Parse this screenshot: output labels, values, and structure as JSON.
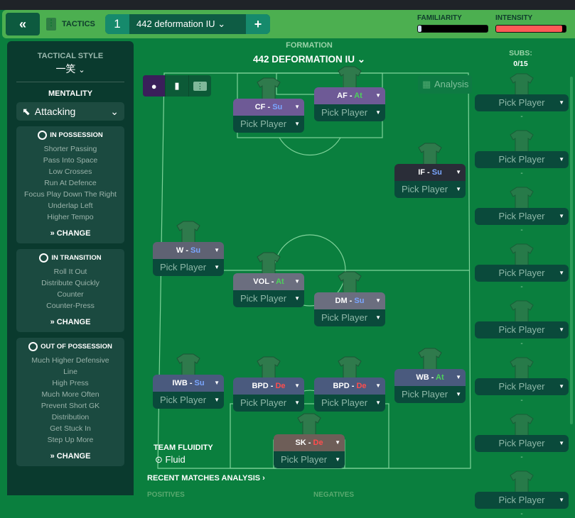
{
  "header": {
    "tactics_label": "TACTICS",
    "slot_number": "1",
    "tactic_name": "442 deformation IU",
    "familiarity_label": "FAMILIARITY",
    "intensity_label": "INTENSITY",
    "familiarity_level": 0.05,
    "intensity_level": 0.95,
    "colors": {
      "header": "#4caf50",
      "intensity": "#ff5a57"
    }
  },
  "sidebar": {
    "tactical_style_label": "TACTICAL STYLE",
    "tactical_style": "一笑",
    "mentality_label": "MENTALITY",
    "mentality": "Attacking",
    "in_possession": {
      "title": "IN POSSESSION",
      "items": [
        "Shorter Passing",
        "Pass Into Space",
        "Low Crosses",
        "Run At Defence",
        "Focus Play Down The Right",
        "Underlap Left",
        "Higher Tempo"
      ],
      "change": "CHANGE"
    },
    "in_transition": {
      "title": "IN TRANSITION",
      "items": [
        "Roll It Out",
        "Distribute Quickly",
        "Counter",
        "Counter-Press"
      ],
      "change": "CHANGE"
    },
    "out_of_possession": {
      "title": "OUT OF POSSESSION",
      "items": [
        "Much Higher Defensive Line",
        "High Press",
        "Much More Often",
        "Prevent Short GK Distribution",
        "Get Stuck In",
        "Step Up More"
      ],
      "change": "CHANGE"
    }
  },
  "formation": {
    "label": "FORMATION",
    "name": "442 DEFORMATION IU"
  },
  "analysis_label": "Analysis",
  "subs": {
    "label": "SUBS:",
    "count": "0/15",
    "pick_label": "Pick Player",
    "dash": "-",
    "slots": 8
  },
  "duty_colors": {
    "Su": "#7aa6ff",
    "At": "#4cd35a",
    "De": "#ff4d4d"
  },
  "players": [
    {
      "role": "CF",
      "duty": "Su",
      "pick": "Pick Player",
      "bg": "#6e5a96"
    },
    {
      "role": "AF",
      "duty": "At",
      "pick": "Pick Player",
      "bg": "#6e5a96"
    },
    {
      "role": "IF",
      "duty": "Su",
      "pick": "Pick Player",
      "bg": "#2a2d38"
    },
    {
      "role": "W",
      "duty": "Su",
      "pick": "Pick Player",
      "bg": "#5f6273"
    },
    {
      "role": "VOL",
      "duty": "At",
      "pick": "Pick Player",
      "bg": "#6b6e7f"
    },
    {
      "role": "DM",
      "duty": "Su",
      "pick": "Pick Player",
      "bg": "#6b6e7f"
    },
    {
      "role": "IWB",
      "duty": "Su",
      "pick": "Pick Player",
      "bg": "#4a5a7e"
    },
    {
      "role": "BPD",
      "duty": "De",
      "pick": "Pick Player",
      "bg": "#4a5a7e"
    },
    {
      "role": "BPD",
      "duty": "De",
      "pick": "Pick Player",
      "bg": "#4a5a7e"
    },
    {
      "role": "WB",
      "duty": "At",
      "pick": "Pick Player",
      "bg": "#4a5a7e"
    },
    {
      "role": "SK",
      "duty": "De",
      "pick": "Pick Player",
      "bg": "#6e5e58"
    }
  ],
  "team_fluidity": {
    "label": "TEAM FLUIDITY",
    "value": "Fluid"
  },
  "recent": {
    "title": "RECENT MATCHES ANALYSIS ›",
    "positives": "POSITIVES",
    "negatives": "NEGATIVES"
  }
}
